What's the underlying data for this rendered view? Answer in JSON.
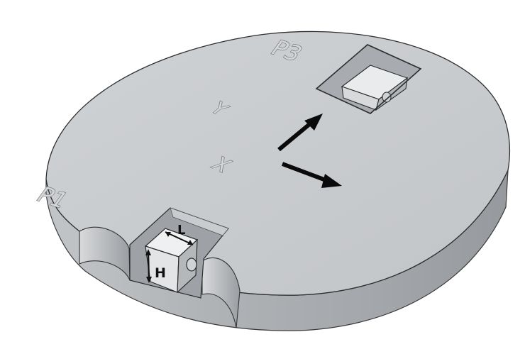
{
  "labels": {
    "pocket_1": "P1",
    "pocket_3": "P3",
    "axis_x": "X",
    "axis_y": "Y",
    "dim_length": "L",
    "dim_height": "H"
  },
  "colors": {
    "top_face": "#c6c9cc",
    "side_face": "#a6a9ad",
    "arrow": "#0a0a0a",
    "outline": "#2e2e2e"
  }
}
